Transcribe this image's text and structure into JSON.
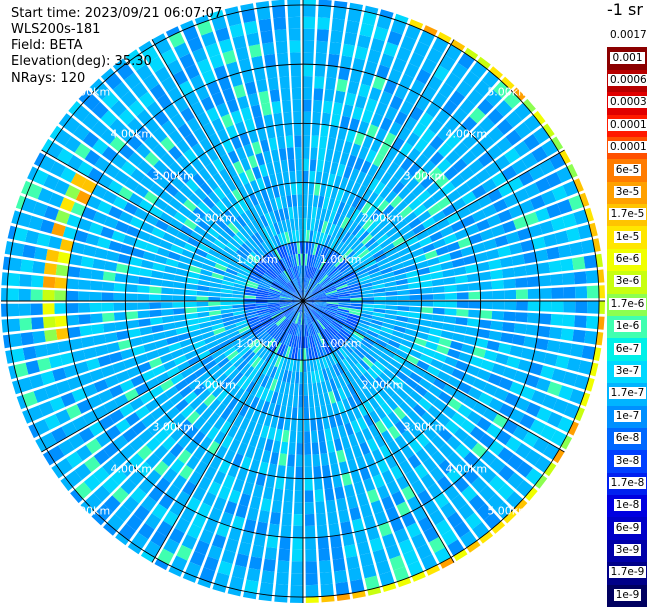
{
  "header": {
    "start_time": "Start time: 2023/09/21 06:07:07",
    "instrument": "WLS200s-181",
    "field": "Field: BETA",
    "elevation": "Elevation(deg): 35.30",
    "nrays": "NRays: 120"
  },
  "chart_data": {
    "type": "heatmap",
    "projection": "polar-ppi",
    "field": "BETA",
    "n_rays": 120,
    "elevation_deg": 35.3,
    "range_rings_km": [
      1.0,
      2.0,
      3.0,
      4.0,
      5.0
    ],
    "ring_labels": [
      "1.00km",
      "2.00km",
      "3.00km",
      "4.00km",
      "5.00km"
    ],
    "max_range_km": 5.1,
    "colorbar": {
      "units": "-1 sr",
      "scale": "log",
      "labels": [
        "0.0017",
        "0.001",
        "0.0006",
        "0.0003",
        "0.00017",
        "0.0001",
        "6e-5",
        "3e-5",
        "1.7e-5",
        "1e-5",
        "6e-6",
        "3e-6",
        "1.7e-6",
        "1e-6",
        "6e-7",
        "3e-7",
        "1.7e-7",
        "1e-7",
        "6e-8",
        "3e-8",
        "1.7e-8",
        "1e-8",
        "6e-9",
        "3e-9",
        "1.7e-9",
        "1e-9"
      ],
      "colors": [
        "#ffffff",
        "#8b0000",
        "#b80000",
        "#e00000",
        "#ff1a00",
        "#ff5000",
        "#ff7c00",
        "#ffa000",
        "#ffc400",
        "#ffe600",
        "#f0ff00",
        "#c8ff10",
        "#8cff50",
        "#40ffb0",
        "#00f0e8",
        "#00d8ff",
        "#00b4ff",
        "#0090ff",
        "#0068ff",
        "#0040ff",
        "#0020f0",
        "#0000e0",
        "#0000c8",
        "#0000a8",
        "#000088",
        "#000060"
      ]
    },
    "background_level": "3e-7 to 6e-8",
    "enhanced_band": {
      "range_km": 5.0,
      "azimuth_from_deg": 20,
      "azimuth_to_deg": 180,
      "level": "1.7e-5 to 6e-6"
    }
  }
}
